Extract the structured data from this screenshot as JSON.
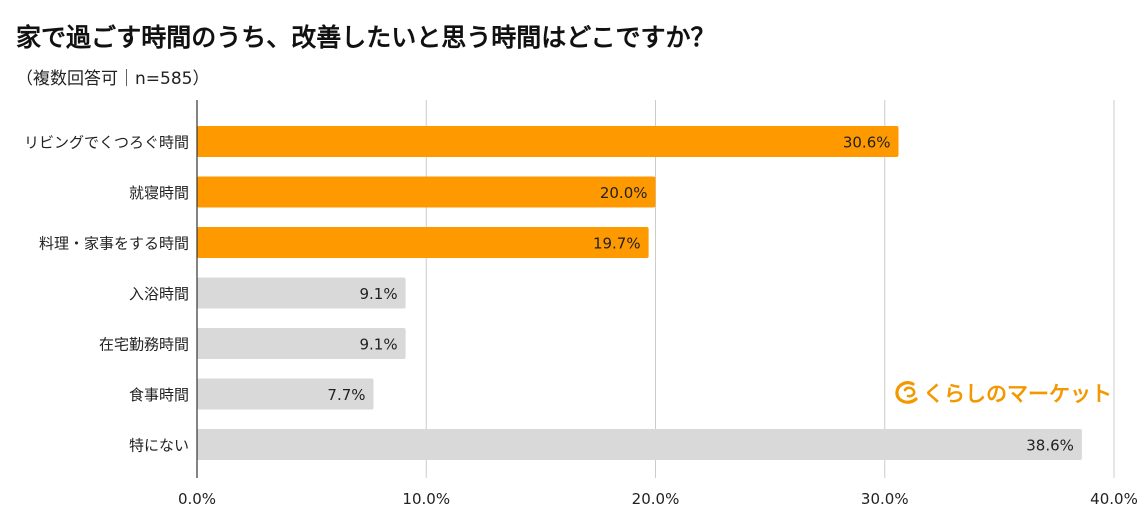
{
  "title": "家で過ごす時間のうち、改善したいと思う時間はどこですか？",
  "subtitle": "（複数回答可｜n=585）",
  "logo_text": "くらしのマーケット",
  "colors": {
    "highlight": "#FF9900",
    "default": "#D9D9D9",
    "grid": "#CCCCCC",
    "logo": "#F39800"
  },
  "chart_data": {
    "type": "bar",
    "orientation": "horizontal",
    "categories": [
      "リビングでくつろぐ時間",
      "就寝時間",
      "料理・家事をする時間",
      "入浴時間",
      "在宅勤務時間",
      "食事時間",
      "特にない"
    ],
    "values": [
      30.6,
      20.0,
      19.7,
      9.1,
      9.1,
      7.7,
      38.6
    ],
    "data_labels": [
      "30.6%",
      "20.0%",
      "19.7%",
      "9.1%",
      "9.1%",
      "7.7%",
      "38.6%"
    ],
    "highlighted": [
      true,
      true,
      true,
      false,
      false,
      false,
      false
    ],
    "xlim": [
      0,
      40
    ],
    "xticks": [
      "0.0%",
      "10.0%",
      "20.0%",
      "30.0%",
      "40.0%"
    ],
    "grid": true,
    "xlabel": "",
    "ylabel": ""
  }
}
